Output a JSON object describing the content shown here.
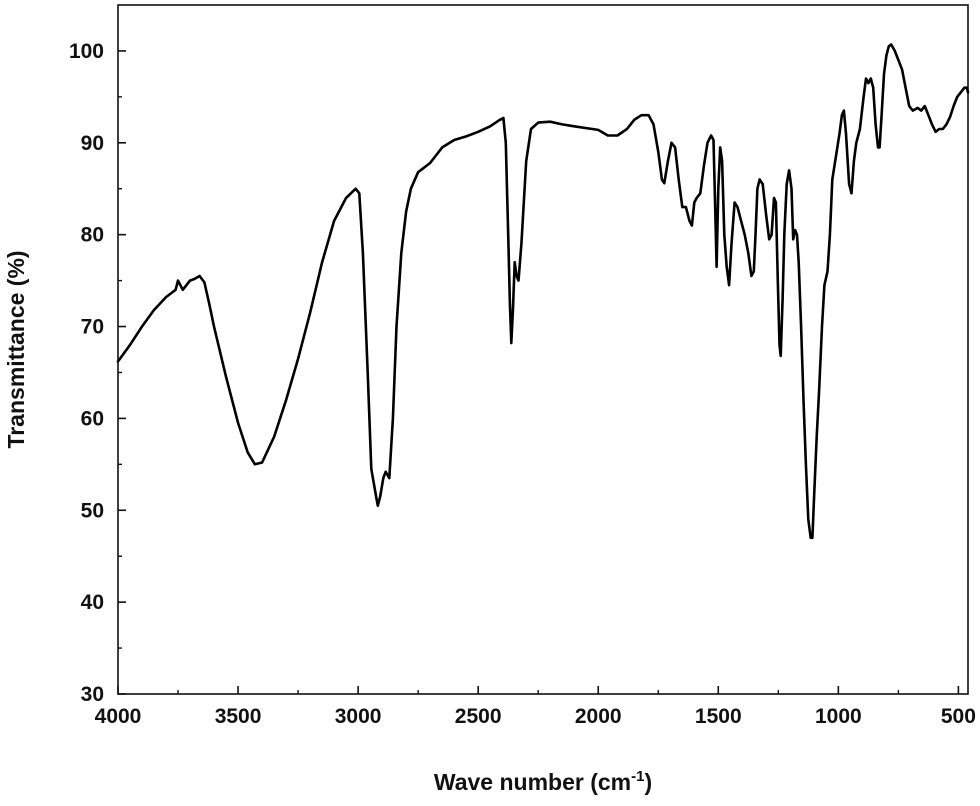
{
  "chart_data": {
    "type": "line",
    "xlabel": "Wave number (cm",
    "xlabel_sup": "-1",
    "xlabel_close": ")",
    "ylabel": "Transmittance (%)",
    "xlim": [
      4000,
      460
    ],
    "ylim": [
      30,
      105
    ],
    "x_ticks": [
      4000,
      3500,
      3000,
      2500,
      2000,
      1500,
      1000,
      500
    ],
    "x_tick_labels": [
      "4000",
      "3500",
      "3000",
      "2500",
      "2000",
      "1500",
      "1000",
      "500"
    ],
    "y_ticks": [
      30,
      40,
      50,
      60,
      70,
      80,
      90,
      100
    ],
    "y_tick_labels": [
      "30",
      "40",
      "50",
      "60",
      "70",
      "80",
      "90",
      "100"
    ],
    "x_reversed": true,
    "grid": false,
    "line_color": "#000000",
    "series": [
      {
        "points": [
          [
            4000,
            66.2
          ],
          [
            3950,
            68.0
          ],
          [
            3900,
            70.0
          ],
          [
            3850,
            71.8
          ],
          [
            3800,
            73.2
          ],
          [
            3760,
            74.0
          ],
          [
            3750,
            75.0
          ],
          [
            3730,
            74.0
          ],
          [
            3700,
            75.0
          ],
          [
            3680,
            75.2
          ],
          [
            3660,
            75.5
          ],
          [
            3640,
            74.8
          ],
          [
            3620,
            72.5
          ],
          [
            3600,
            70.0
          ],
          [
            3550,
            64.5
          ],
          [
            3500,
            59.5
          ],
          [
            3460,
            56.3
          ],
          [
            3430,
            55.0
          ],
          [
            3400,
            55.2
          ],
          [
            3350,
            58.0
          ],
          [
            3300,
            62.0
          ],
          [
            3250,
            66.5
          ],
          [
            3200,
            71.5
          ],
          [
            3150,
            77.0
          ],
          [
            3100,
            81.5
          ],
          [
            3050,
            84.0
          ],
          [
            3010,
            85.0
          ],
          [
            2995,
            84.5
          ],
          [
            2980,
            78.0
          ],
          [
            2960,
            65.0
          ],
          [
            2945,
            54.5
          ],
          [
            2935,
            53.0
          ],
          [
            2925,
            51.5
          ],
          [
            2918,
            50.5
          ],
          [
            2908,
            51.5
          ],
          [
            2895,
            53.5
          ],
          [
            2885,
            54.2
          ],
          [
            2870,
            53.5
          ],
          [
            2855,
            60.0
          ],
          [
            2840,
            70.0
          ],
          [
            2820,
            78.0
          ],
          [
            2800,
            82.5
          ],
          [
            2780,
            85.0
          ],
          [
            2750,
            86.8
          ],
          [
            2700,
            87.8
          ],
          [
            2650,
            89.5
          ],
          [
            2600,
            90.3
          ],
          [
            2550,
            90.7
          ],
          [
            2500,
            91.2
          ],
          [
            2450,
            91.8
          ],
          [
            2410,
            92.5
          ],
          [
            2395,
            92.7
          ],
          [
            2385,
            90.0
          ],
          [
            2375,
            80.0
          ],
          [
            2368,
            72.5
          ],
          [
            2362,
            68.2
          ],
          [
            2355,
            72.0
          ],
          [
            2348,
            77.0
          ],
          [
            2340,
            75.5
          ],
          [
            2332,
            75.0
          ],
          [
            2320,
            79.0
          ],
          [
            2300,
            88.0
          ],
          [
            2280,
            91.5
          ],
          [
            2250,
            92.2
          ],
          [
            2200,
            92.3
          ],
          [
            2150,
            92.0
          ],
          [
            2100,
            91.8
          ],
          [
            2050,
            91.6
          ],
          [
            2000,
            91.4
          ],
          [
            1960,
            90.8
          ],
          [
            1920,
            90.8
          ],
          [
            1880,
            91.5
          ],
          [
            1850,
            92.5
          ],
          [
            1820,
            93.0
          ],
          [
            1790,
            93.0
          ],
          [
            1770,
            92.0
          ],
          [
            1750,
            89.0
          ],
          [
            1735,
            86.0
          ],
          [
            1725,
            85.6
          ],
          [
            1710,
            88.0
          ],
          [
            1695,
            90.0
          ],
          [
            1680,
            89.5
          ],
          [
            1665,
            86.0
          ],
          [
            1650,
            83.0
          ],
          [
            1635,
            83.0
          ],
          [
            1620,
            81.5
          ],
          [
            1610,
            81.0
          ],
          [
            1600,
            83.5
          ],
          [
            1590,
            84.0
          ],
          [
            1575,
            84.5
          ],
          [
            1560,
            87.5
          ],
          [
            1545,
            90.0
          ],
          [
            1530,
            90.8
          ],
          [
            1520,
            90.3
          ],
          [
            1512,
            82.0
          ],
          [
            1507,
            76.5
          ],
          [
            1500,
            85.0
          ],
          [
            1492,
            89.5
          ],
          [
            1484,
            88.0
          ],
          [
            1475,
            80.0
          ],
          [
            1465,
            76.5
          ],
          [
            1455,
            74.5
          ],
          [
            1445,
            79.0
          ],
          [
            1432,
            83.5
          ],
          [
            1420,
            83.0
          ],
          [
            1405,
            81.5
          ],
          [
            1390,
            80.0
          ],
          [
            1375,
            78.0
          ],
          [
            1362,
            75.5
          ],
          [
            1352,
            76.0
          ],
          [
            1345,
            80.0
          ],
          [
            1337,
            85.0
          ],
          [
            1328,
            86.0
          ],
          [
            1315,
            85.5
          ],
          [
            1300,
            82.0
          ],
          [
            1288,
            79.5
          ],
          [
            1278,
            80.0
          ],
          [
            1268,
            84.0
          ],
          [
            1260,
            83.5
          ],
          [
            1252,
            75.0
          ],
          [
            1245,
            68.0
          ],
          [
            1240,
            66.8
          ],
          [
            1232,
            73.0
          ],
          [
            1225,
            80.0
          ],
          [
            1215,
            85.5
          ],
          [
            1205,
            87.0
          ],
          [
            1195,
            85.0
          ],
          [
            1188,
            79.5
          ],
          [
            1180,
            80.5
          ],
          [
            1172,
            80.0
          ],
          [
            1165,
            77.0
          ],
          [
            1155,
            70.0
          ],
          [
            1145,
            62.0
          ],
          [
            1135,
            55.0
          ],
          [
            1125,
            49.0
          ],
          [
            1115,
            47.0
          ],
          [
            1108,
            47.0
          ],
          [
            1100,
            52.0
          ],
          [
            1090,
            58.0
          ],
          [
            1080,
            63.0
          ],
          [
            1068,
            70.0
          ],
          [
            1058,
            74.5
          ],
          [
            1045,
            76.0
          ],
          [
            1035,
            80.0
          ],
          [
            1025,
            86.0
          ],
          [
            1010,
            88.5
          ],
          [
            995,
            91.0
          ],
          [
            985,
            93.0
          ],
          [
            977,
            93.5
          ],
          [
            968,
            91.0
          ],
          [
            955,
            85.5
          ],
          [
            945,
            84.5
          ],
          [
            935,
            88.0
          ],
          [
            925,
            90.0
          ],
          [
            910,
            91.5
          ],
          [
            895,
            95.0
          ],
          [
            885,
            97.0
          ],
          [
            875,
            96.5
          ],
          [
            865,
            97.0
          ],
          [
            855,
            96.0
          ],
          [
            845,
            92.0
          ],
          [
            835,
            89.5
          ],
          [
            828,
            89.5
          ],
          [
            820,
            93.0
          ],
          [
            810,
            97.5
          ],
          [
            800,
            99.5
          ],
          [
            790,
            100.5
          ],
          [
            780,
            100.7
          ],
          [
            765,
            100.0
          ],
          [
            750,
            99.0
          ],
          [
            735,
            98.0
          ],
          [
            720,
            96.0
          ],
          [
            705,
            94.0
          ],
          [
            690,
            93.5
          ],
          [
            670,
            93.8
          ],
          [
            655,
            93.5
          ],
          [
            640,
            94.0
          ],
          [
            625,
            93.0
          ],
          [
            610,
            92.0
          ],
          [
            595,
            91.2
          ],
          [
            580,
            91.5
          ],
          [
            565,
            91.5
          ],
          [
            550,
            92.0
          ],
          [
            535,
            92.8
          ],
          [
            520,
            94.0
          ],
          [
            505,
            95.0
          ],
          [
            490,
            95.5
          ],
          [
            475,
            96.0
          ],
          [
            465,
            96.0
          ],
          [
            460,
            95.5
          ]
        ]
      }
    ]
  }
}
